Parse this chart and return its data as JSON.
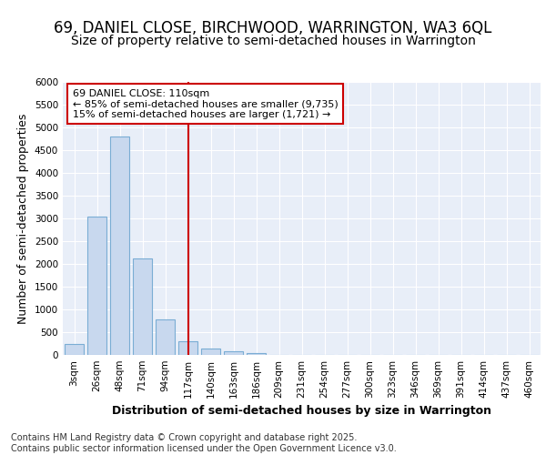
{
  "title": "69, DANIEL CLOSE, BIRCHWOOD, WARRINGTON, WA3 6QL",
  "subtitle": "Size of property relative to semi-detached houses in Warrington",
  "xlabel": "Distribution of semi-detached houses by size in Warrington",
  "ylabel": "Number of semi-detached properties",
  "categories": [
    "3sqm",
    "26sqm",
    "48sqm",
    "71sqm",
    "94sqm",
    "117sqm",
    "140sqm",
    "163sqm",
    "186sqm",
    "209sqm",
    "231sqm",
    "254sqm",
    "277sqm",
    "300sqm",
    "323sqm",
    "346sqm",
    "369sqm",
    "391sqm",
    "414sqm",
    "437sqm",
    "460sqm"
  ],
  "values": [
    240,
    3050,
    4800,
    2130,
    780,
    305,
    145,
    75,
    40,
    0,
    0,
    0,
    0,
    0,
    0,
    0,
    0,
    0,
    0,
    0,
    0
  ],
  "bar_color": "#c8d8ee",
  "bar_edgecolor": "#7aadd4",
  "vline_x": 5,
  "vline_color": "#cc0000",
  "annotation_text": "69 DANIEL CLOSE: 110sqm\n← 85% of semi-detached houses are smaller (9,735)\n15% of semi-detached houses are larger (1,721) →",
  "annotation_box_edgecolor": "#cc0000",
  "annotation_box_facecolor": "#ffffff",
  "ylim": [
    0,
    6000
  ],
  "yticks": [
    0,
    500,
    1000,
    1500,
    2000,
    2500,
    3000,
    3500,
    4000,
    4500,
    5000,
    5500,
    6000
  ],
  "footer": "Contains HM Land Registry data © Crown copyright and database right 2025.\nContains public sector information licensed under the Open Government Licence v3.0.",
  "fig_bg_color": "#ffffff",
  "plot_bg_color": "#e8eef8",
  "grid_color": "#ffffff",
  "title_fontsize": 12,
  "subtitle_fontsize": 10,
  "axis_label_fontsize": 9,
  "tick_fontsize": 7.5,
  "footer_fontsize": 7
}
